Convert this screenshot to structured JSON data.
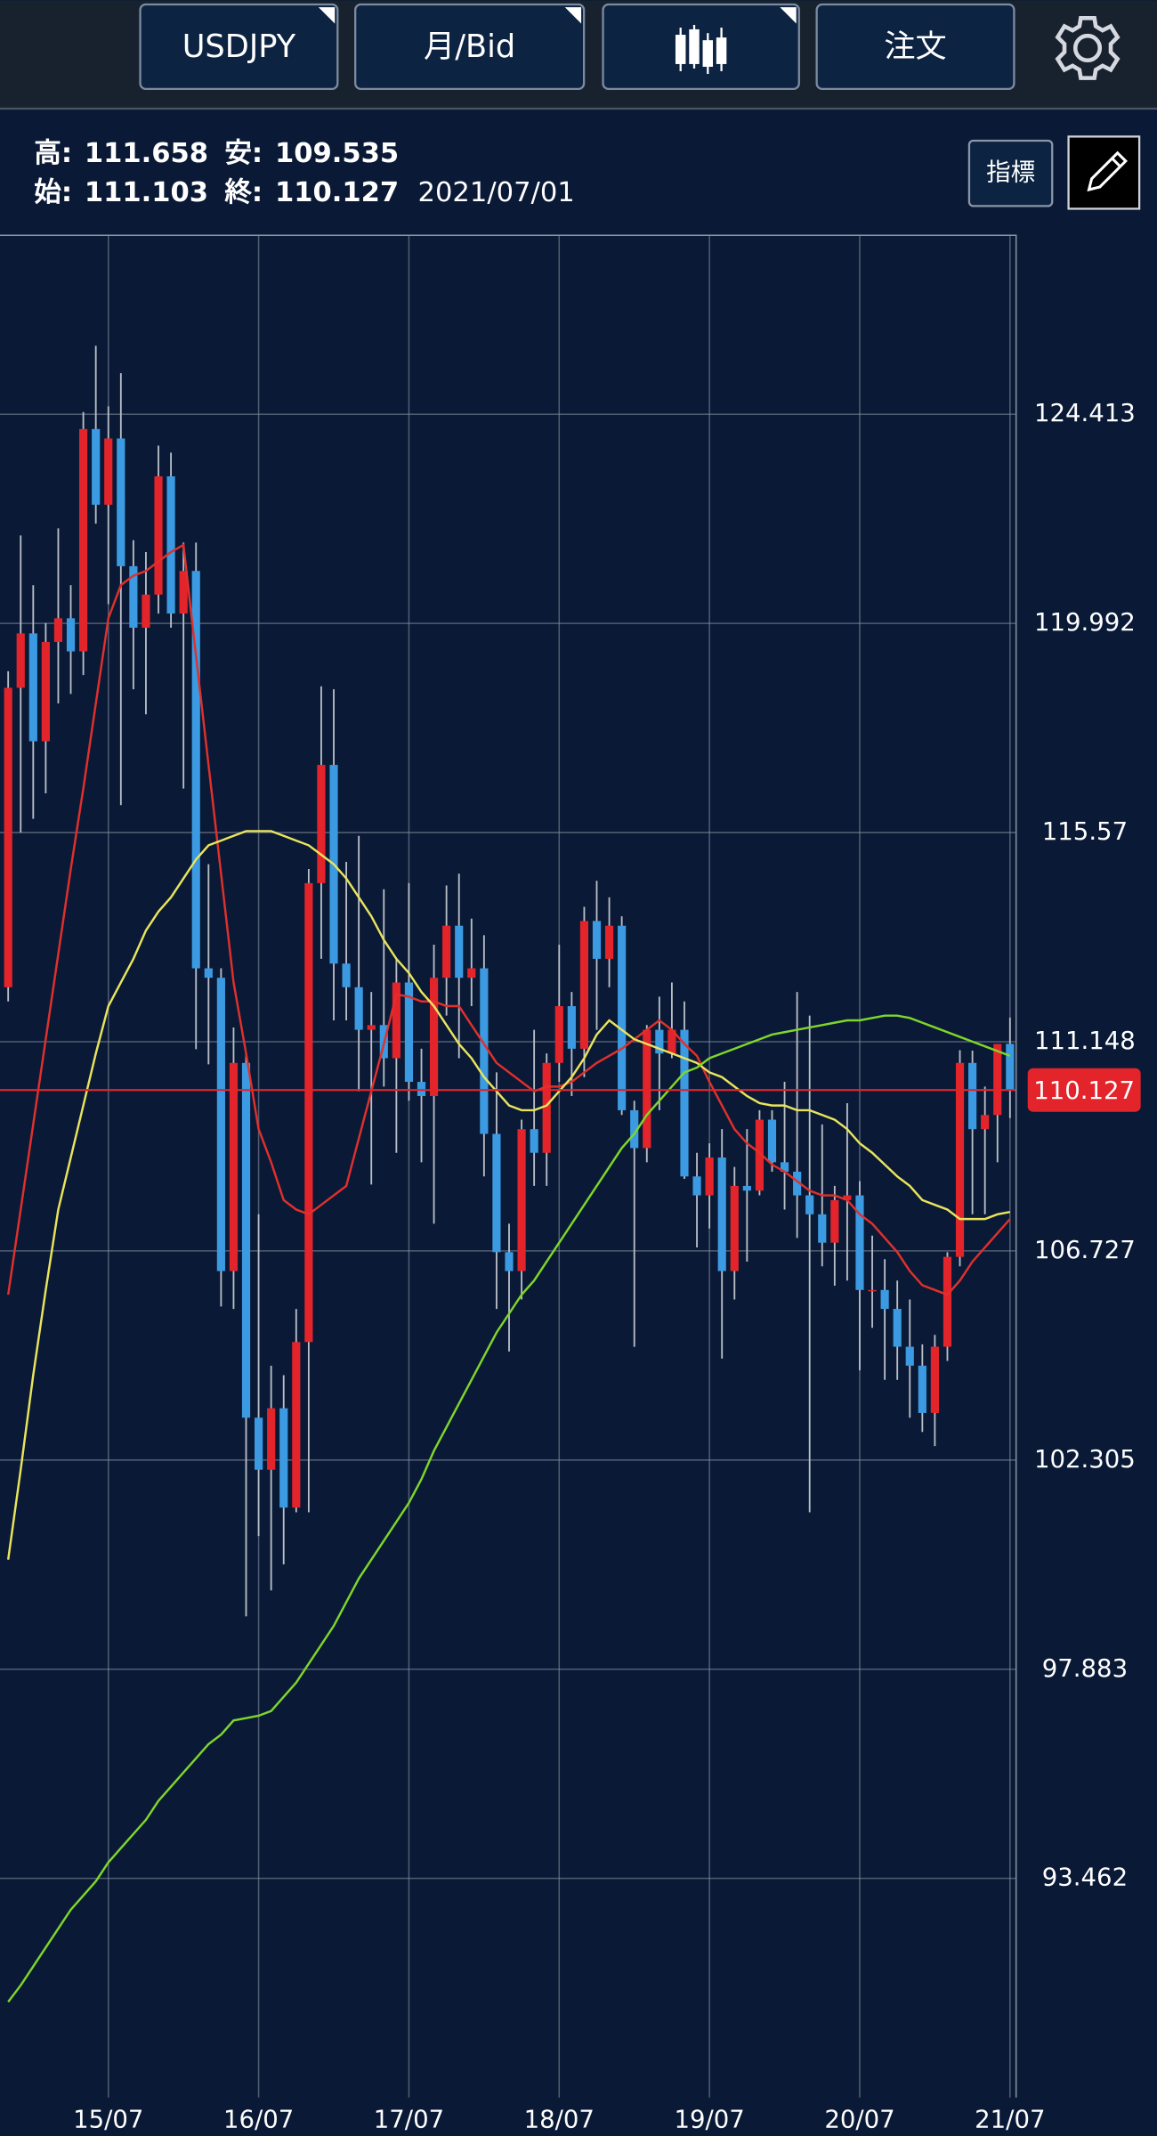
{
  "toolbar": {
    "symbol": "USDJPY",
    "period": "月/Bid",
    "order": "注文",
    "indicator": "指標"
  },
  "header": {
    "high_label": "高:",
    "high": "111.658",
    "low_label": "安:",
    "low": "109.535",
    "open_label": "始:",
    "open": "111.103",
    "close_label": "終:",
    "close": "110.127",
    "date": "2021/07/01"
  },
  "chart_data": {
    "type": "candlestick",
    "categories": [
      null,
      null,
      null,
      null,
      null,
      null,
      null,
      null,
      "15/07",
      null,
      null,
      null,
      null,
      null,
      null,
      null,
      null,
      null,
      null,
      null,
      "16/07",
      null,
      null,
      null,
      null,
      null,
      null,
      null,
      null,
      null,
      null,
      null,
      "17/07",
      null,
      null,
      null,
      null,
      null,
      null,
      null,
      null,
      null,
      null,
      null,
      "18/07",
      null,
      null,
      null,
      null,
      null,
      null,
      null,
      null,
      null,
      null,
      null,
      "19/07",
      null,
      null,
      null,
      null,
      null,
      null,
      null,
      null,
      null,
      null,
      null,
      "20/07",
      null,
      null,
      null,
      null,
      null,
      null,
      null,
      null,
      null,
      null,
      null,
      "21/07"
    ],
    "open": [
      112.3,
      118.63,
      119.78,
      117.5,
      119.6,
      120.1,
      119.4,
      124.1,
      122.5,
      123.9,
      121.2,
      119.9,
      120.6,
      123.1,
      120.2,
      121.1,
      112.7,
      112.5,
      106.3,
      110.7,
      103.2,
      102.1,
      103.4,
      101.3,
      104.8,
      114.5,
      117.0,
      112.8,
      112.3,
      111.4,
      111.5,
      110.8,
      112.4,
      110.3,
      110.0,
      112.5,
      113.6,
      112.5,
      112.7,
      109.2,
      106.7,
      106.3,
      109.3,
      108.8,
      110.7,
      111.9,
      111.0,
      113.7,
      112.9,
      113.6,
      109.7,
      108.9,
      111.4,
      110.9,
      111.4,
      108.3,
      107.9,
      108.7,
      106.3,
      108.1,
      108.0,
      109.5,
      108.6,
      108.4,
      107.9,
      107.5,
      106.9,
      107.8,
      107.9,
      105.9,
      105.9,
      105.5,
      104.7,
      104.3,
      103.3,
      104.7,
      106.6,
      110.7,
      109.3,
      109.6,
      111.103
    ],
    "high": [
      118.98,
      121.85,
      120.8,
      120.0,
      122.0,
      120.8,
      124.46,
      125.86,
      124.58,
      125.28,
      121.75,
      121.5,
      123.75,
      123.6,
      121.7,
      121.7,
      114.9,
      112.7,
      111.45,
      110.9,
      107.5,
      104.3,
      104.1,
      105.5,
      114.8,
      118.66,
      118.6,
      114.95,
      115.5,
      112.2,
      114.37,
      112.9,
      114.5,
      111.0,
      113.2,
      114.45,
      114.7,
      113.75,
      113.4,
      110.5,
      107.3,
      109.5,
      111.4,
      110.9,
      113.2,
      112.2,
      114.0,
      114.55,
      114.2,
      113.8,
      109.9,
      111.5,
      112.1,
      112.4,
      112.0,
      108.8,
      109.0,
      109.3,
      108.5,
      109.3,
      109.7,
      109.7,
      110.3,
      112.2,
      111.7,
      109.4,
      108.1,
      109.85,
      108.2,
      107.05,
      106.55,
      106.1,
      105.7,
      104.75,
      104.95,
      106.7,
      110.97,
      110.96,
      110.2,
      111.1,
      111.658
    ],
    "low": [
      112.0,
      115.57,
      115.86,
      116.4,
      118.3,
      118.5,
      118.9,
      122.1,
      120.4,
      116.15,
      118.6,
      118.07,
      120.2,
      119.9,
      116.5,
      110.99,
      110.67,
      105.55,
      105.5,
      99.0,
      100.7,
      99.55,
      100.1,
      101.2,
      101.2,
      112.9,
      111.6,
      111.6,
      110.1,
      108.13,
      110.2,
      108.8,
      109.9,
      108.6,
      107.3,
      111.7,
      110.8,
      111.9,
      108.3,
      105.5,
      104.6,
      105.7,
      108.1,
      108.1,
      110.3,
      110.0,
      110.4,
      111.4,
      112.3,
      109.6,
      104.7,
      108.6,
      109.7,
      110.8,
      108.25,
      106.8,
      107.2,
      104.45,
      105.7,
      106.5,
      107.9,
      108.4,
      107.6,
      107.0,
      101.2,
      106.4,
      105.99,
      106.1,
      104.2,
      105.1,
      104.0,
      104.0,
      103.2,
      102.9,
      102.6,
      104.4,
      106.4,
      107.5,
      107.5,
      108.6,
      109.535
    ],
    "close": [
      118.63,
      119.78,
      117.5,
      119.6,
      120.1,
      119.4,
      124.1,
      122.5,
      123.9,
      121.2,
      119.9,
      120.6,
      123.1,
      120.2,
      121.1,
      112.7,
      112.5,
      106.3,
      110.7,
      103.2,
      102.1,
      103.4,
      101.3,
      104.8,
      114.5,
      117.0,
      112.8,
      112.3,
      111.4,
      111.5,
      110.8,
      112.4,
      110.3,
      110.0,
      112.5,
      113.6,
      112.5,
      112.7,
      109.2,
      106.7,
      106.3,
      109.3,
      108.8,
      110.7,
      111.9,
      111.0,
      113.7,
      112.9,
      113.6,
      109.7,
      108.9,
      111.4,
      110.9,
      111.4,
      108.3,
      107.9,
      108.7,
      106.3,
      108.1,
      108.0,
      109.5,
      108.6,
      108.4,
      107.9,
      107.5,
      106.9,
      107.8,
      107.9,
      105.9,
      105.9,
      105.5,
      104.7,
      104.3,
      103.3,
      104.7,
      106.6,
      110.7,
      109.3,
      109.6,
      111.1,
      110.127
    ],
    "up_color": "#e3242b",
    "down_color": "#3b9ae1",
    "series": [
      {
        "color": "#e0302c",
        "values": [
          105.8,
          107.6,
          109.4,
          111.2,
          113.0,
          114.8,
          116.5,
          118.3,
          120.1,
          120.8,
          121.0,
          121.1,
          121.3,
          121.5,
          121.65,
          119.3,
          117.0,
          114.7,
          112.4,
          110.9,
          109.3,
          108.6,
          107.8,
          107.6,
          107.5,
          107.7,
          107.9,
          108.1,
          109.1,
          110.1,
          111.1,
          112.15,
          112.1,
          112.0,
          112.0,
          111.9,
          111.9,
          111.5,
          111.1,
          110.7,
          110.5,
          110.3,
          110.1,
          110.2,
          110.2,
          110.3,
          110.5,
          110.7,
          110.85,
          111.0,
          111.2,
          111.4,
          111.6,
          111.4,
          111.1,
          110.85,
          110.3,
          109.8,
          109.3,
          109.0,
          108.8,
          108.55,
          108.4,
          108.2,
          108.0,
          107.9,
          107.9,
          107.8,
          107.5,
          107.3,
          107.0,
          106.7,
          106.3,
          106.0,
          105.9,
          105.8,
          106.1,
          106.5,
          106.8,
          107.1,
          107.4
        ]
      },
      {
        "color": "#e9e45c",
        "values": [
          100.2,
          102.1,
          104.1,
          105.9,
          107.6,
          108.7,
          109.8,
          110.9,
          111.9,
          112.4,
          112.9,
          113.5,
          113.9,
          114.2,
          114.6,
          115.0,
          115.3,
          115.4,
          115.5,
          115.6,
          115.6,
          115.6,
          115.5,
          115.4,
          115.3,
          115.1,
          114.9,
          114.6,
          114.2,
          113.8,
          113.3,
          112.9,
          112.6,
          112.2,
          111.9,
          111.5,
          111.1,
          110.8,
          110.4,
          110.1,
          109.8,
          109.7,
          109.7,
          109.8,
          110.1,
          110.4,
          110.8,
          111.3,
          111.6,
          111.4,
          111.2,
          111.1,
          111.0,
          110.9,
          110.8,
          110.7,
          110.5,
          110.4,
          110.2,
          110.0,
          109.85,
          109.8,
          109.8,
          109.7,
          109.7,
          109.6,
          109.5,
          109.3,
          109.0,
          108.8,
          108.55,
          108.3,
          108.1,
          107.8,
          107.7,
          107.6,
          107.4,
          107.4,
          107.4,
          107.5,
          107.55
        ]
      },
      {
        "color": "#7fd62a",
        "values": [
          90.85,
          91.2,
          91.6,
          92.0,
          92.4,
          92.8,
          93.1,
          93.4,
          93.8,
          94.1,
          94.4,
          94.7,
          95.1,
          95.4,
          95.7,
          96.0,
          96.3,
          96.5,
          96.8,
          96.85,
          96.9,
          97.0,
          97.3,
          97.6,
          98.0,
          98.4,
          98.8,
          99.3,
          99.8,
          100.2,
          100.6,
          101.0,
          101.4,
          101.9,
          102.5,
          103.0,
          103.5,
          104.0,
          104.5,
          105.0,
          105.4,
          105.8,
          106.1,
          106.5,
          106.9,
          107.3,
          107.7,
          108.1,
          108.5,
          108.9,
          109.2,
          109.6,
          109.9,
          110.2,
          110.5,
          110.6,
          110.8,
          110.9,
          111.0,
          111.1,
          111.2,
          111.3,
          111.35,
          111.4,
          111.45,
          111.5,
          111.55,
          111.6,
          111.6,
          111.65,
          111.7,
          111.7,
          111.65,
          111.55,
          111.45,
          111.35,
          111.25,
          111.15,
          111.05,
          110.95,
          110.85
        ]
      }
    ],
    "ylim": [
      88.83,
      128.21
    ],
    "yticks": [
      93.462,
      97.883,
      102.305,
      106.727,
      111.148,
      115.57,
      119.992,
      124.413
    ],
    "last_price": 110.127,
    "last_price_color": "#e3242b",
    "grid": true
  }
}
